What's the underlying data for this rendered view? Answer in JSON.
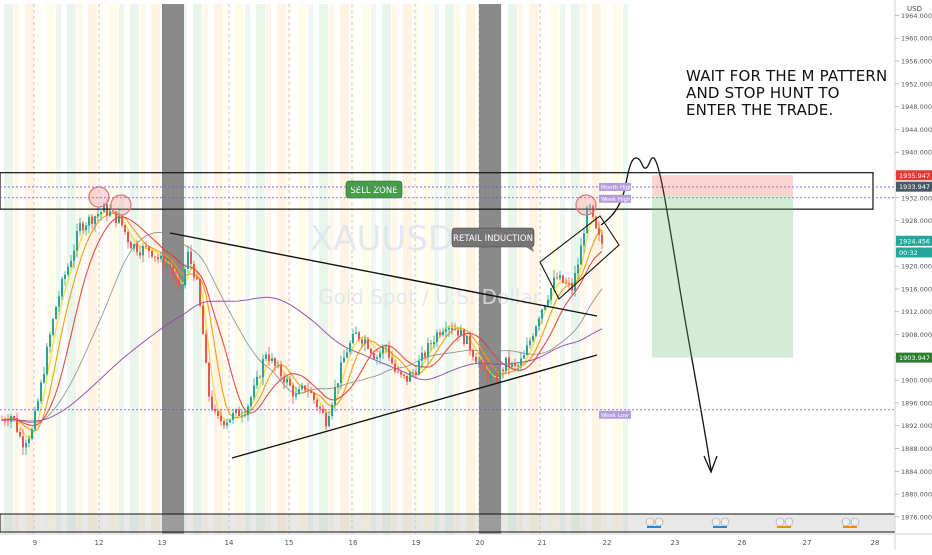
{
  "chart_data": {
    "type": "candlestick",
    "symbol_watermark": "XAUUSD",
    "symbol_subtitle": "Gold Spot / U.S. Dollar",
    "currency_label": "USD",
    "ylim": [
      1873,
      1966
    ],
    "y_ticks": [
      1876,
      1880,
      1884,
      1888,
      1892,
      1896,
      1900,
      1904,
      1908,
      1912,
      1916,
      1920,
      1924,
      1928,
      1932,
      1936,
      1940,
      1944,
      1948,
      1952,
      1956,
      1960,
      1964
    ],
    "y_tick_labels": [
      "1876.000",
      "1880.000",
      "1884.000",
      "1888.000",
      "1892.000",
      "1896.000",
      "1900.000",
      "1904.000",
      "1908.000",
      "1912.000",
      "1916.000",
      "1920.000",
      "1924.000",
      "1928.000",
      "1932.000",
      "1936.000",
      "1940.000",
      "1944.000",
      "1948.000",
      "1952.000",
      "1956.000",
      "1960.000",
      "1964.000"
    ],
    "x_labels": [
      {
        "label": "9",
        "day": 9
      },
      {
        "label": "12",
        "day": 12
      },
      {
        "label": "13",
        "day": 13
      },
      {
        "label": "14",
        "day": 14
      },
      {
        "label": "15",
        "day": 15
      },
      {
        "label": "16",
        "day": 16
      },
      {
        "label": "19",
        "day": 19
      },
      {
        "label": "20",
        "day": 20
      },
      {
        "label": "21",
        "day": 21
      },
      {
        "label": "22",
        "day": 22
      },
      {
        "label": "23",
        "day": 23
      },
      {
        "label": "26",
        "day": 26
      },
      {
        "label": "27",
        "day": 27
      },
      {
        "label": "28",
        "day": 28
      }
    ],
    "price_labels": [
      {
        "text": "1935.947",
        "value": 1935.947,
        "color": "#e53935"
      },
      {
        "text": "1933.947",
        "value": 1933.947,
        "color": "#455a64"
      },
      {
        "text": "1924.456",
        "value": 1924.456,
        "color": "#26a69a"
      },
      {
        "text": "00:32",
        "value": 1922.4,
        "color": "#26a69a"
      },
      {
        "text": "1903.947",
        "value": 1903.947,
        "color": "#2e7d32"
      }
    ],
    "level_tags": [
      {
        "text": "Month High",
        "value": 1933.9
      },
      {
        "text": "Week High",
        "value": 1932.0
      },
      {
        "text": "Week Low",
        "value": 1894.8
      }
    ],
    "sell_zone_label": "SELL ZONE",
    "retail_label": "RETAIL INDUCTION",
    "annotation_lines": [
      "WAIT FOR THE M PATTERN",
      "AND STOP HUNT TO",
      "ENTER THE TRADE."
    ],
    "trade": {
      "entry": 1932.4,
      "stop": 1935.947,
      "target": 1903.947
    },
    "zone": {
      "top": 1936.4,
      "bottom": 1930.0
    }
  }
}
